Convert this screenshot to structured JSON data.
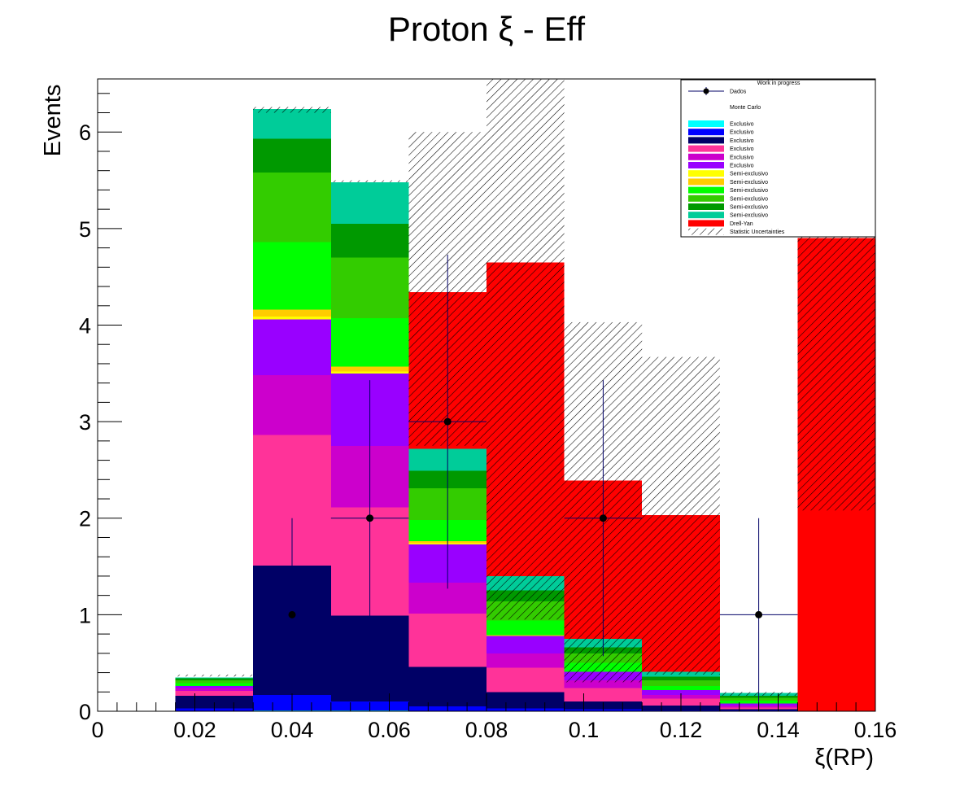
{
  "chart_data": {
    "type": "bar",
    "stacked": true,
    "title": "Proton ξ - Eff",
    "xlabel": "ξ(RP)",
    "ylabel": "Events",
    "xlim": [
      0,
      0.16
    ],
    "ylim": [
      0,
      6.55
    ],
    "x_ticks": [
      "0",
      "0.02",
      "0.04",
      "0.06",
      "0.08",
      "0.1",
      "0.12",
      "0.14",
      "0.16"
    ],
    "y_ticks": [
      "0",
      "1",
      "2",
      "3",
      "4",
      "5",
      "6"
    ],
    "bin_edges": [
      0,
      0.016,
      0.032,
      0.048,
      0.064,
      0.08,
      0.096,
      0.112,
      0.128,
      0.144,
      0.16
    ],
    "series": [
      {
        "name": "Exclusivo",
        "color": "#00ffff",
        "values": [
          0,
          0,
          0.01,
          0.01,
          0,
          0,
          0,
          0,
          0,
          0
        ]
      },
      {
        "name": "Exclusivo",
        "color": "#0000ff",
        "values": [
          0,
          0.03,
          0.16,
          0.09,
          0.05,
          0.03,
          0.02,
          0.01,
          0.01,
          0
        ]
      },
      {
        "name": "Exclusivo",
        "color": "#000066",
        "values": [
          0,
          0.13,
          1.34,
          0.89,
          0.41,
          0.17,
          0.08,
          0.05,
          0.01,
          0
        ]
      },
      {
        "name": "Exclusivo",
        "color": "#ff3399",
        "values": [
          0,
          0.05,
          1.35,
          1.12,
          0.55,
          0.25,
          0.14,
          0.07,
          0.02,
          0
        ]
      },
      {
        "name": "Exclusivo",
        "color": "#cc00cc",
        "values": [
          0,
          0.03,
          0.62,
          0.64,
          0.32,
          0.15,
          0.08,
          0.04,
          0.02,
          0
        ]
      },
      {
        "name": "Exclusivo",
        "color": "#9900ff",
        "values": [
          0,
          0.02,
          0.58,
          0.75,
          0.4,
          0.18,
          0.09,
          0.05,
          0.02,
          0
        ]
      },
      {
        "name": "Semi-exclusivo",
        "color": "#ffff00",
        "values": [
          0,
          0,
          0.03,
          0.02,
          0.01,
          0,
          0,
          0,
          0,
          0
        ]
      },
      {
        "name": "Semi-exclusivo",
        "color": "#ffcc00",
        "values": [
          0,
          0,
          0.07,
          0.05,
          0.02,
          0.01,
          0,
          0,
          0,
          0
        ]
      },
      {
        "name": "Semi-exclusivo",
        "color": "#00ff00",
        "values": [
          0,
          0.03,
          0.7,
          0.5,
          0.22,
          0.15,
          0.09,
          0.04,
          0.03,
          0
        ]
      },
      {
        "name": "Semi-exclusivo",
        "color": "#33cc00",
        "values": [
          0,
          0.03,
          0.72,
          0.63,
          0.33,
          0.2,
          0.1,
          0.06,
          0.03,
          0
        ]
      },
      {
        "name": "Semi-exclusivo",
        "color": "#009900",
        "values": [
          0,
          0.02,
          0.35,
          0.35,
          0.18,
          0.11,
          0.06,
          0.04,
          0.02,
          0
        ]
      },
      {
        "name": "Semi-exclusivo",
        "color": "#00cc99",
        "values": [
          0,
          0.01,
          0.31,
          0.43,
          0.23,
          0.15,
          0.09,
          0.05,
          0.03,
          0
        ]
      },
      {
        "name": "Drell-Yan",
        "color": "#ff0000",
        "values": [
          0,
          0,
          0,
          0,
          1.62,
          3.25,
          1.64,
          1.62,
          0,
          4.9
        ]
      }
    ],
    "stat_uncertainty": {
      "name": "Statistic Uncertainties",
      "low": [
        0,
        0.36,
        6.2,
        5.48,
        2.75,
        0.95,
        0.3,
        0.38,
        0.16,
        2.08
      ],
      "high": [
        0,
        0.38,
        6.26,
        5.5,
        6.0,
        6.55,
        4.03,
        3.67,
        0.2,
        7.7
      ]
    },
    "data": {
      "name": "Dados",
      "points": [
        {
          "x": 0.04,
          "y": 1,
          "xerr": 0.008,
          "ylow": 0,
          "yhigh": 2.0
        },
        {
          "x": 0.056,
          "y": 2,
          "xerr": 0.008,
          "ylow": 0.57,
          "yhigh": 3.43
        },
        {
          "x": 0.072,
          "y": 3,
          "xerr": 0.008,
          "ylow": 1.27,
          "yhigh": 4.73
        },
        {
          "x": 0.104,
          "y": 2,
          "xerr": 0.008,
          "ylow": 0.57,
          "yhigh": 3.43
        },
        {
          "x": 0.136,
          "y": 1,
          "xerr": 0.008,
          "ylow": 0,
          "yhigh": 2.0
        }
      ]
    },
    "legend": {
      "placement": "top-right",
      "header": "Work in progress",
      "data_label": "Dados",
      "mc_label": "Monte Carlo",
      "uncertainty_label": "Statistic Uncertainties"
    }
  }
}
